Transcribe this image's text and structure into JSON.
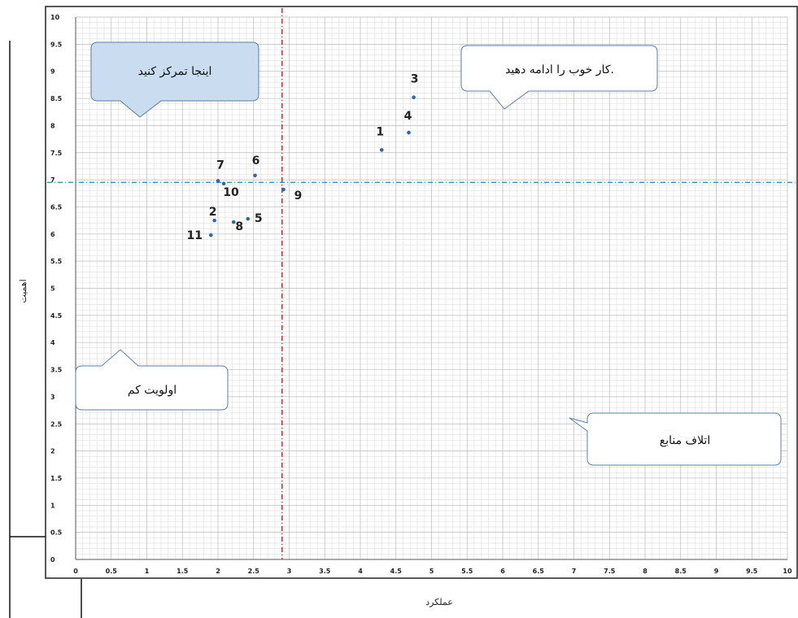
{
  "chart_data": {
    "type": "scatter",
    "xlabel": "عملکرد",
    "ylabel": "اهمیت",
    "xlim": [
      0,
      10
    ],
    "ylim": [
      0,
      10
    ],
    "x_ticks": [
      "0",
      "0.5",
      "1",
      "1.5",
      "2",
      "2.5",
      "3",
      "3.5",
      "4",
      "4.5",
      "5",
      "5.5",
      "6",
      "6.5",
      "7",
      "7.5",
      "8",
      "8.5",
      "9",
      "9.5",
      "10"
    ],
    "y_ticks": [
      "0",
      "0.5",
      "1",
      "1.5",
      "2",
      "2.5",
      "3",
      "3.5",
      "4",
      "4.5",
      "5",
      "5.5",
      "6",
      "6.5",
      "7",
      "7.5",
      "8",
      "8.5",
      "9",
      "9.5",
      "10"
    ],
    "grid": true,
    "points": [
      {
        "label": "1",
        "x": 4.3,
        "y": 7.55
      },
      {
        "label": "2",
        "x": 1.95,
        "y": 6.25
      },
      {
        "label": "3",
        "x": 4.75,
        "y": 8.52
      },
      {
        "label": "4",
        "x": 4.68,
        "y": 7.87
      },
      {
        "label": "5",
        "x": 2.42,
        "y": 6.28
      },
      {
        "label": "6",
        "x": 2.52,
        "y": 7.08
      },
      {
        "label": "7",
        "x": 2.0,
        "y": 6.98
      },
      {
        "label": "8",
        "x": 2.22,
        "y": 6.22
      },
      {
        "label": "9",
        "x": 2.92,
        "y": 6.82
      },
      {
        "label": "10",
        "x": 2.08,
        "y": 6.93
      },
      {
        "label": "11",
        "x": 1.9,
        "y": 5.98
      }
    ],
    "reference_lines": {
      "vertical_x": 2.9,
      "horizontal_y": 6.95
    },
    "quadrant_labels": [
      "اینجا تمرکز کنید",
      "کار خوب را ادامه دهید.",
      "اولویت کم",
      "اتلاف منابع"
    ]
  },
  "colors": {
    "point": "#2e64b4",
    "vertical_line": "#cc2a2a",
    "horizontal_line": "#3d8fc9",
    "grid_major": "#b9b9b9",
    "grid_minor": "#e1e1e1",
    "callout_fill": "#c9dcf0",
    "callout_stroke": "#5a7ea8"
  }
}
